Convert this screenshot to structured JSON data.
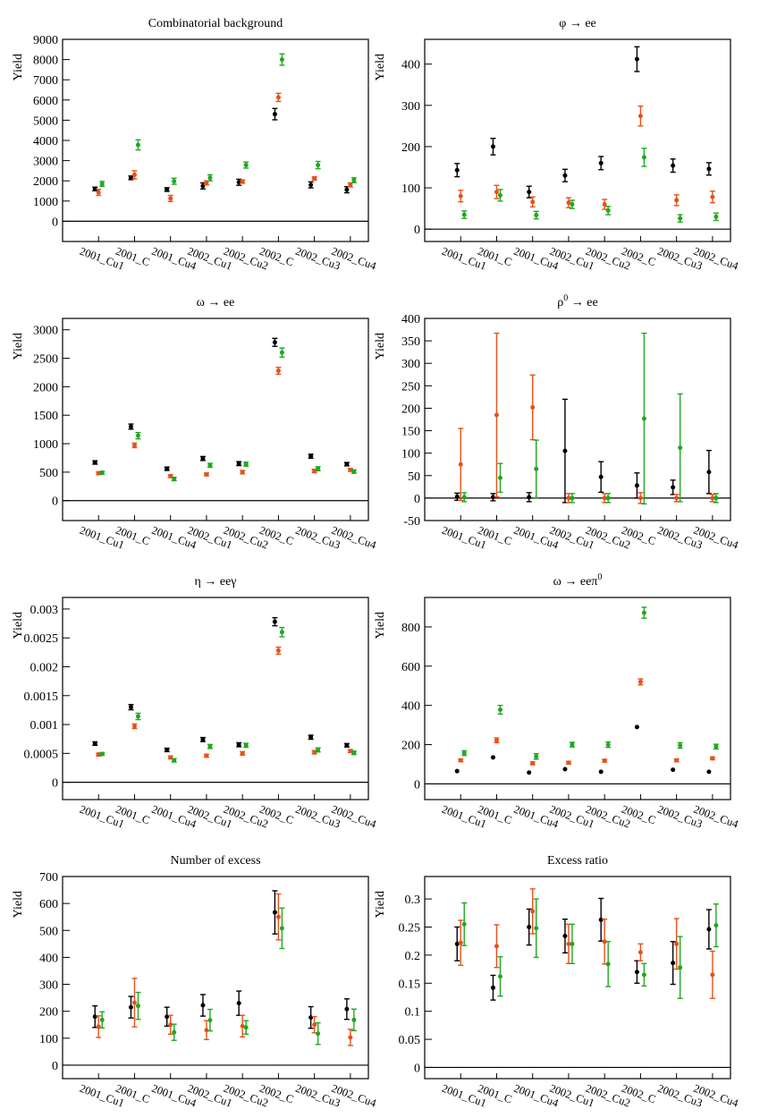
{
  "figure": {
    "series_colors": [
      "#000000",
      "#e8501a",
      "#1fa81f"
    ]
  },
  "chart_data": [
    {
      "type": "scatter",
      "title": "Combinatorial background",
      "ylabel": "Yield",
      "ylim": [
        -1000,
        9000
      ],
      "yticks": [
        "0",
        "1000",
        "2000",
        "3000",
        "4000",
        "5000",
        "6000",
        "7000",
        "8000",
        "9000"
      ],
      "categories": [
        "2001_Cu1",
        "2001_C",
        "2001_Cu4",
        "2002_Cu1",
        "2002_Cu2",
        "2002_C",
        "2002_Cu3",
        "2002_Cu4"
      ],
      "series": [
        {
          "values": [
            1600,
            2150,
            1570,
            1750,
            1930,
            5300,
            1800,
            1560
          ],
          "errors": [
            90,
            90,
            90,
            150,
            150,
            280,
            150,
            150
          ]
        },
        {
          "values": [
            1430,
            2300,
            1130,
            1900,
            1960,
            6130,
            2120,
            1800
          ],
          "errors": [
            150,
            200,
            150,
            100,
            80,
            200,
            80,
            100
          ]
        },
        {
          "values": [
            1850,
            3780,
            1980,
            2150,
            2780,
            8000,
            2780,
            2030
          ],
          "errors": [
            120,
            250,
            150,
            150,
            150,
            280,
            180,
            120
          ]
        }
      ]
    },
    {
      "type": "scatter",
      "title": "φ → ee",
      "ylabel": "Yield",
      "ylim": [
        -30,
        460
      ],
      "yticks": [
        "0",
        "100",
        "200",
        "300",
        "400"
      ],
      "categories": [
        "2001_Cu1",
        "2001_C",
        "2001_Cu4",
        "2002_Cu1",
        "2002_Cu2",
        "2002_C",
        "2002_Cu3",
        "2002_Cu4"
      ],
      "series": [
        {
          "values": [
            143,
            200,
            90,
            130,
            160,
            412,
            154,
            146
          ],
          "errors": [
            16,
            20,
            14,
            15,
            16,
            30,
            16,
            15
          ]
        },
        {
          "values": [
            80,
            90,
            66,
            64,
            60,
            274,
            70,
            78
          ],
          "errors": [
            14,
            16,
            12,
            12,
            12,
            24,
            13,
            14
          ]
        },
        {
          "values": [
            35,
            82,
            34,
            60,
            45,
            174,
            26,
            30
          ],
          "errors": [
            9,
            14,
            9,
            10,
            10,
            22,
            9,
            9
          ]
        }
      ]
    },
    {
      "type": "scatter",
      "title": "ω → ee",
      "ylabel": "Yield",
      "ylim": [
        -350,
        3200
      ],
      "yticks": [
        "0",
        "500",
        "1000",
        "1500",
        "2000",
        "2500",
        "3000"
      ],
      "categories": [
        "2001_Cu1",
        "2001_C",
        "2001_Cu4",
        "2002_Cu1",
        "2002_Cu2",
        "2002_C",
        "2002_Cu3",
        "2002_Cu4"
      ],
      "series": [
        {
          "values": [
            670,
            1300,
            560,
            740,
            650,
            2780,
            780,
            640
          ],
          "errors": [
            30,
            45,
            30,
            35,
            35,
            70,
            35,
            30
          ]
        },
        {
          "values": [
            480,
            970,
            430,
            460,
            500,
            2280,
            520,
            540
          ],
          "errors": [
            25,
            40,
            25,
            25,
            30,
            60,
            30,
            25
          ]
        },
        {
          "values": [
            490,
            1140,
            380,
            620,
            640,
            2600,
            560,
            510
          ],
          "errors": [
            25,
            55,
            30,
            35,
            35,
            80,
            35,
            30
          ]
        }
      ]
    },
    {
      "type": "scatter",
      "title": "ρ",
      "title_sup": "0",
      "title_rest": " → ee",
      "ylabel": "Yield",
      "ylim": [
        -50,
        400
      ],
      "yticks": [
        "-50",
        "0",
        "50",
        "100",
        "150",
        "200",
        "250",
        "300",
        "350",
        "400"
      ],
      "categories": [
        "2001_Cu1",
        "2001_C",
        "2001_Cu4",
        "2002_Cu1",
        "2002_Cu2",
        "2002_C",
        "2002_Cu3",
        "2002_Cu4"
      ],
      "series": [
        {
          "values": [
            3,
            2,
            2,
            105,
            47,
            28,
            24,
            58
          ],
          "errors": [
            8,
            8,
            10,
            115,
            34,
            28,
            16,
            48
          ]
        },
        {
          "values": [
            75,
            185,
            202,
            0,
            0,
            0,
            0,
            0
          ],
          "errors": [
            80,
            182,
            72,
            10,
            10,
            12,
            8,
            8
          ]
        },
        {
          "values": [
            2,
            45,
            65,
            0,
            0,
            177,
            112,
            0
          ],
          "errors": [
            10,
            32,
            64,
            10,
            10,
            190,
            120,
            10
          ]
        }
      ]
    },
    {
      "type": "scatter",
      "title": "η → eeγ",
      "ylabel": "Yield",
      "ylim": [
        -0.0003,
        0.0032
      ],
      "yticks": [
        "0",
        "0.0005",
        "0.001",
        "0.0015",
        "0.002",
        "0.0025",
        "0.003"
      ],
      "categories": [
        "2001_Cu1",
        "2001_C",
        "2001_Cu4",
        "2002_Cu1",
        "2002_Cu2",
        "2002_C",
        "2002_Cu3",
        "2002_Cu4"
      ],
      "series": [
        {
          "values": [
            0.00067,
            0.0013,
            0.00056,
            0.00074,
            0.00065,
            0.00278,
            0.00078,
            0.00064
          ],
          "errors": [
            3e-05,
            4.5e-05,
            3e-05,
            3.5e-05,
            3.5e-05,
            7e-05,
            3.5e-05,
            3e-05
          ]
        },
        {
          "values": [
            0.00048,
            0.00097,
            0.00043,
            0.00046,
            0.0005,
            0.00228,
            0.00052,
            0.00054
          ],
          "errors": [
            2.5e-05,
            4e-05,
            2.5e-05,
            2.5e-05,
            3e-05,
            6e-05,
            3e-05,
            2.5e-05
          ]
        },
        {
          "values": [
            0.00049,
            0.00114,
            0.00038,
            0.00062,
            0.00064,
            0.0026,
            0.00056,
            0.00051
          ],
          "errors": [
            2.5e-05,
            5.5e-05,
            3e-05,
            3.5e-05,
            3.5e-05,
            8e-05,
            3.5e-05,
            3e-05
          ]
        }
      ]
    },
    {
      "type": "scatter",
      "title": "ω → eeπ",
      "title_sup": "0",
      "title_rest": "",
      "ylabel": "Yield",
      "ylim": [
        -80,
        950
      ],
      "yticks": [
        "0",
        "200",
        "400",
        "600",
        "800"
      ],
      "categories": [
        "2001_Cu1",
        "2001_C",
        "2001_Cu4",
        "2002_Cu1",
        "2002_Cu2",
        "2002_C",
        "2002_Cu3",
        "2002_Cu4"
      ],
      "series": [
        {
          "values": [
            65,
            135,
            58,
            75,
            62,
            290,
            72,
            62
          ],
          "errors": [
            4,
            5,
            4,
            4,
            4,
            6,
            4,
            4
          ]
        },
        {
          "values": [
            120,
            222,
            105,
            108,
            118,
            520,
            120,
            130
          ],
          "errors": [
            7,
            12,
            7,
            7,
            7,
            15,
            7,
            7
          ]
        },
        {
          "values": [
            157,
            378,
            140,
            200,
            200,
            872,
            196,
            190
          ],
          "errors": [
            12,
            22,
            14,
            12,
            14,
            28,
            14,
            12
          ]
        }
      ]
    },
    {
      "type": "scatter",
      "title": "Number of excess",
      "ylabel": "Yield",
      "ylim": [
        -50,
        700
      ],
      "yticks": [
        "0",
        "100",
        "200",
        "300",
        "400",
        "500",
        "600",
        "700"
      ],
      "categories": [
        "2001_Cu1",
        "2001_C",
        "2001_Cu4",
        "2002_Cu1",
        "2002_Cu2",
        "2002_C",
        "2002_Cu3",
        "2002_Cu4"
      ],
      "series": [
        {
          "values": [
            180,
            215,
            180,
            222,
            230,
            567,
            177,
            208
          ],
          "errors": [
            40,
            40,
            35,
            40,
            45,
            80,
            40,
            38
          ]
        },
        {
          "values": [
            143,
            232,
            150,
            130,
            145,
            550,
            150,
            103
          ],
          "errors": [
            40,
            90,
            35,
            35,
            40,
            85,
            30,
            30
          ]
        },
        {
          "values": [
            168,
            220,
            122,
            167,
            140,
            508,
            117,
            168
          ],
          "errors": [
            30,
            50,
            30,
            40,
            25,
            75,
            40,
            40
          ]
        }
      ]
    },
    {
      "type": "scatter",
      "title": "Excess ratio",
      "ylabel": "Yield",
      "ylim": [
        -0.02,
        0.34
      ],
      "yticks": [
        "0",
        "0.05",
        "0.1",
        "0.15",
        "0.2",
        "0.25",
        "0.3"
      ],
      "categories": [
        "2001_Cu1",
        "2001_C",
        "2001_Cu4",
        "2002_Cu1",
        "2002_Cu2",
        "2002_C",
        "2002_Cu3",
        "2002_Cu4"
      ],
      "series": [
        {
          "values": [
            0.22,
            0.142,
            0.25,
            0.234,
            0.263,
            0.17,
            0.186,
            0.246
          ],
          "errors": [
            0.03,
            0.022,
            0.032,
            0.03,
            0.038,
            0.02,
            0.038,
            0.035
          ]
        },
        {
          "values": [
            0.222,
            0.216,
            0.278,
            0.22,
            0.224,
            0.205,
            0.22,
            0.165
          ],
          "errors": [
            0.04,
            0.038,
            0.04,
            0.035,
            0.04,
            0.015,
            0.045,
            0.042
          ]
        },
        {
          "values": [
            0.255,
            0.162,
            0.248,
            0.22,
            0.184,
            0.165,
            0.178,
            0.253
          ],
          "errors": [
            0.038,
            0.035,
            0.052,
            0.035,
            0.04,
            0.02,
            0.055,
            0.038
          ]
        }
      ]
    }
  ]
}
